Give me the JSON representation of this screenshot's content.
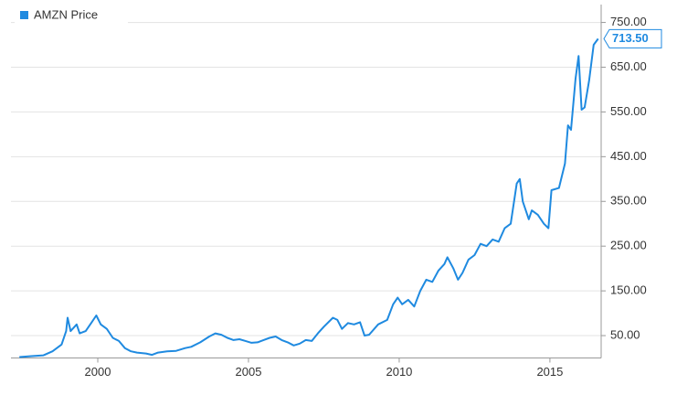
{
  "chart_data": {
    "type": "line",
    "x": [
      1997.4,
      1997.8,
      1998.2,
      1998.5,
      1998.8,
      1998.95,
      1999.0,
      1999.1,
      1999.3,
      1999.4,
      1999.6,
      1999.8,
      1999.95,
      2000.1,
      2000.3,
      2000.5,
      2000.7,
      2000.9,
      2001.1,
      2001.3,
      2001.6,
      2001.8,
      2002.0,
      2002.3,
      2002.6,
      2002.9,
      2003.1,
      2003.4,
      2003.7,
      2003.9,
      2004.1,
      2004.3,
      2004.5,
      2004.7,
      2004.9,
      2005.1,
      2005.3,
      2005.5,
      2005.7,
      2005.9,
      2006.1,
      2006.3,
      2006.5,
      2006.7,
      2006.9,
      2007.1,
      2007.3,
      2007.5,
      2007.8,
      2007.95,
      2008.1,
      2008.3,
      2008.5,
      2008.7,
      2008.85,
      2009.0,
      2009.3,
      2009.6,
      2009.8,
      2009.95,
      2010.1,
      2010.3,
      2010.5,
      2010.7,
      2010.9,
      2011.1,
      2011.3,
      2011.5,
      2011.6,
      2011.8,
      2011.95,
      2012.1,
      2012.3,
      2012.5,
      2012.7,
      2012.9,
      2013.1,
      2013.3,
      2013.5,
      2013.7,
      2013.9,
      2014.0,
      2014.1,
      2014.3,
      2014.4,
      2014.6,
      2014.8,
      2014.95,
      2015.05,
      2015.3,
      2015.5,
      2015.6,
      2015.7,
      2015.85,
      2015.95,
      2016.05,
      2016.15,
      2016.3,
      2016.45,
      2016.6
    ],
    "series": [
      {
        "name": "AMZN Price",
        "color": "#1f8ae0",
        "values": [
          2,
          4,
          6,
          15,
          30,
          60,
          90,
          60,
          75,
          55,
          60,
          80,
          95,
          75,
          65,
          45,
          38,
          22,
          15,
          12,
          10,
          7,
          12,
          15,
          16,
          22,
          25,
          35,
          48,
          55,
          52,
          45,
          40,
          42,
          38,
          34,
          35,
          40,
          45,
          48,
          40,
          35,
          28,
          32,
          40,
          38,
          55,
          70,
          90,
          85,
          65,
          78,
          75,
          80,
          50,
          52,
          75,
          85,
          120,
          135,
          120,
          130,
          115,
          150,
          175,
          170,
          195,
          210,
          225,
          200,
          175,
          190,
          220,
          230,
          255,
          250,
          265,
          260,
          290,
          300,
          390,
          400,
          350,
          310,
          330,
          320,
          300,
          290,
          375,
          380,
          435,
          520,
          510,
          625,
          675,
          555,
          560,
          620,
          700,
          713.5
        ],
        "value_labels": [
          null,
          null,
          null,
          null,
          null,
          null,
          null,
          null,
          null,
          null,
          null,
          null,
          null,
          null,
          null,
          null,
          null,
          null,
          null,
          null,
          null,
          null,
          null,
          null,
          null,
          null,
          null,
          null,
          null,
          null,
          null,
          null,
          null,
          null,
          null,
          null,
          null,
          null,
          null,
          null,
          null,
          null,
          null,
          null,
          null,
          null,
          null,
          null,
          null,
          null,
          null,
          null,
          null,
          null,
          null,
          null,
          null,
          null,
          null,
          null,
          null,
          null,
          null,
          null,
          null,
          null,
          null,
          null,
          null,
          null,
          null,
          null,
          null,
          null,
          null,
          null,
          null,
          null,
          null,
          null,
          null,
          null,
          null,
          null,
          null,
          null,
          null,
          null,
          null,
          null,
          null,
          null,
          null,
          null,
          null,
          null,
          null,
          null,
          null,
          "713.50"
        ]
      }
    ],
    "xlim": [
      1997.12,
      2016.7
    ],
    "xticks": [
      2000,
      2005,
      2010,
      2015
    ],
    "ylim": [
      0,
      790
    ],
    "yticks": [
      {
        "value": 50,
        "label": "50.00"
      },
      {
        "value": 150,
        "label": "150.00"
      },
      {
        "value": 250,
        "label": "250.00"
      },
      {
        "value": 350,
        "label": "350.00"
      },
      {
        "value": 450,
        "label": "450.00"
      },
      {
        "value": 550,
        "label": "550.00"
      },
      {
        "value": 650,
        "label": "650.00"
      },
      {
        "value": 750,
        "label": "750.00"
      }
    ],
    "grid": true,
    "legend": "top-left"
  }
}
